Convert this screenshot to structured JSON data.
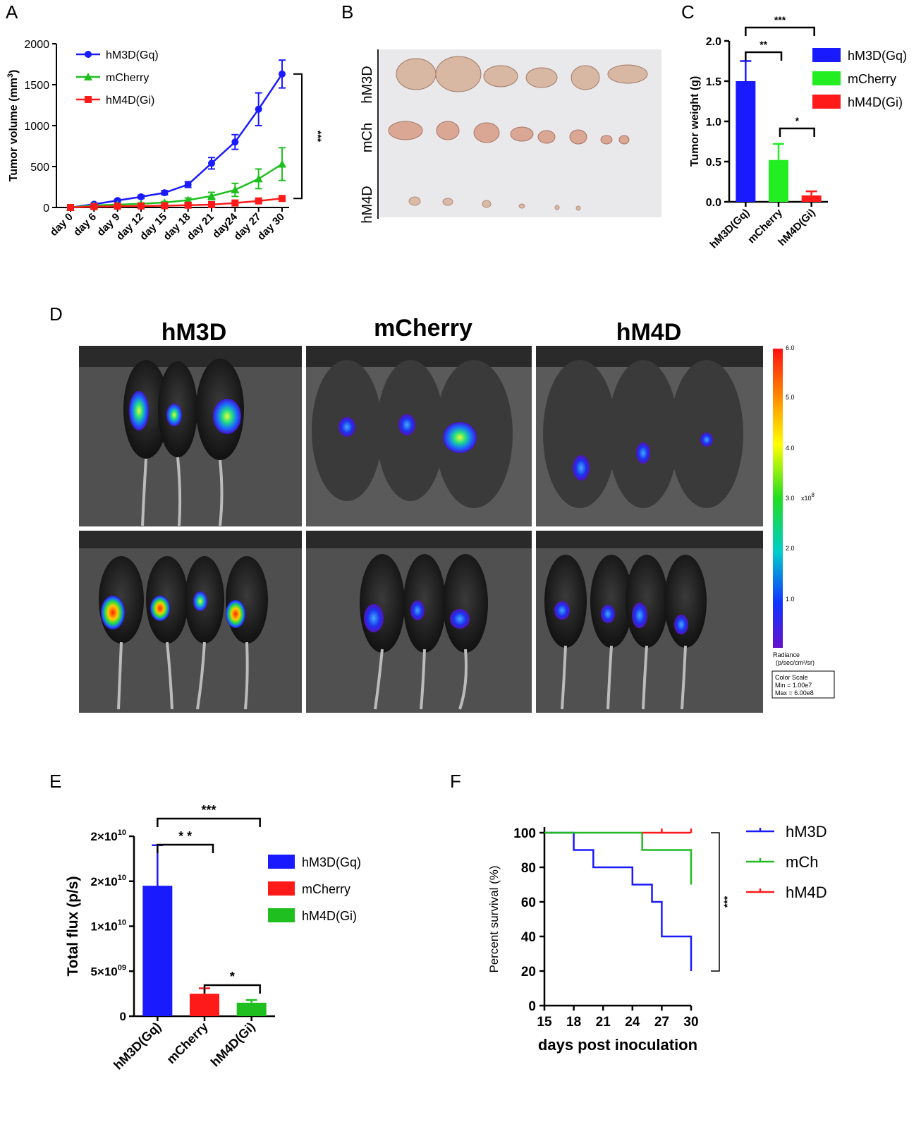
{
  "panels": {
    "a": "A",
    "b": "B",
    "c": "C",
    "d": "D",
    "e": "E",
    "f": "F"
  },
  "chart_data": [
    {
      "id": "A",
      "type": "line",
      "ylabel": "Tumor volume (mm",
      "ylabel_sup": "3",
      "ylabel_close": ")",
      "categories": [
        "day 0",
        "day 6",
        "day 9",
        "day 12",
        "day 15",
        "day 18",
        "day 21",
        "day24",
        "day 27",
        "day 30"
      ],
      "ylim": [
        0,
        2000
      ],
      "yticks": [
        "0",
        "500",
        "1000",
        "1500",
        "2000"
      ],
      "series": [
        {
          "name": "hM3D(Gq)",
          "color": "#1a1aff",
          "marker": "circle",
          "values": [
            0,
            40,
            85,
            130,
            180,
            280,
            540,
            800,
            1200,
            1630
          ],
          "errors": [
            0,
            10,
            15,
            20,
            25,
            35,
            70,
            90,
            200,
            170
          ]
        },
        {
          "name": "mCherry",
          "color": "#1fbf1f",
          "marker": "triangle",
          "values": [
            0,
            25,
            35,
            45,
            60,
            90,
            140,
            215,
            350,
            530
          ],
          "errors": [
            0,
            5,
            8,
            10,
            12,
            25,
            45,
            80,
            120,
            200
          ]
        },
        {
          "name": "hM4D(Gi)",
          "color": "#ff1a1a",
          "marker": "square",
          "values": [
            0,
            10,
            15,
            18,
            22,
            28,
            35,
            55,
            80,
            110
          ],
          "errors": [
            0,
            3,
            4,
            5,
            5,
            6,
            8,
            10,
            15,
            25
          ]
        }
      ],
      "significance": "***"
    },
    {
      "id": "C",
      "type": "bar",
      "ylabel": "Tumor weight (g)",
      "categories": [
        "hM3D(Gq)",
        "mCherry",
        "hM4D(Gi)"
      ],
      "values": [
        1.5,
        0.52,
        0.08
      ],
      "errors": [
        0.25,
        0.2,
        0.05
      ],
      "colors": [
        "#1a1aff",
        "#22ee22",
        "#ff1a1a"
      ],
      "ylim": [
        0,
        2.0
      ],
      "yticks": [
        "0.0",
        "0.5",
        "1.0",
        "1.5",
        "2.0"
      ],
      "legend": [
        "hM3D(Gq)",
        "mCherry",
        "hM4D(Gi)"
      ],
      "significance": [
        "***",
        "**",
        "*"
      ]
    },
    {
      "id": "E",
      "type": "bar",
      "ylabel": "Total flux (p/s)",
      "categories": [
        "hM3D(Gq)",
        "mCherry",
        "hM4D(Gi)"
      ],
      "values": [
        14500000000.0,
        2500000000.0,
        1500000000.0
      ],
      "errors": [
        4500000000.0,
        600000000.0,
        300000000.0
      ],
      "colors": [
        "#1a1aff",
        "#ff1a1a",
        "#1fbf1f"
      ],
      "ylim": [
        0,
        20000000000.0
      ],
      "ytick_values": [
        0,
        5000000000.0,
        10000000000.0,
        15000000000.0,
        20000000000.0
      ],
      "yticks": [
        {
          "base": "0",
          "exp": ""
        },
        {
          "base": "5×10",
          "exp": "09"
        },
        {
          "base": "1×10",
          "exp": "10"
        },
        {
          "base": "2×10",
          "exp": "10"
        },
        {
          "base": "2×10",
          "exp": "10"
        }
      ],
      "legend": [
        "hM3D(Gq)",
        "mCherry",
        "hM4D(Gi)"
      ],
      "significance": [
        "***",
        "* *",
        "*"
      ]
    },
    {
      "id": "F",
      "type": "line",
      "subtype": "survival",
      "ylabel": "Percent survival (%)",
      "xlabel": "days post inoculation",
      "xlim": [
        15,
        30
      ],
      "xticks": [
        "15",
        "18",
        "21",
        "24",
        "27",
        "30"
      ],
      "ylim": [
        0,
        100
      ],
      "yticks": [
        "0",
        "20",
        "40",
        "60",
        "80",
        "100"
      ],
      "series": [
        {
          "name": "hM3D",
          "color": "#1a1aff",
          "steps": [
            [
              15,
              100
            ],
            [
              18,
              100
            ],
            [
              18,
              90
            ],
            [
              20,
              90
            ],
            [
              20,
              80
            ],
            [
              24,
              80
            ],
            [
              24,
              70
            ],
            [
              26,
              70
            ],
            [
              26,
              60
            ],
            [
              27,
              60
            ],
            [
              27,
              40
            ],
            [
              30,
              40
            ],
            [
              30,
              20
            ]
          ]
        },
        {
          "name": "mCh",
          "color": "#22bb22",
          "steps": [
            [
              15,
              100
            ],
            [
              25,
              100
            ],
            [
              25,
              90
            ],
            [
              30,
              90
            ],
            [
              30,
              70
            ]
          ]
        },
        {
          "name": "hM4D",
          "color": "#ff1a1a",
          "steps": [
            [
              25,
              100
            ],
            [
              30,
              100
            ]
          ]
        }
      ],
      "significance": "***"
    }
  ],
  "panel_b": {
    "row_labels": [
      "hM3D",
      "mCh",
      "hM4D"
    ]
  },
  "panel_d": {
    "column_titles": [
      "hM3D",
      "mCherry",
      "hM4D"
    ],
    "scale_ticks": [
      "6.0",
      "5.0",
      "4.0",
      "3.0",
      "2.0",
      "1.0"
    ],
    "scale_multiplier": "x10",
    "scale_multiplier_exp": "8",
    "radiance_label": "Radiance",
    "radiance_units": "(p/sec/cm²/sr)",
    "color_scale_title": "Color Scale",
    "color_scale_min": "Min = 1.00e7",
    "color_scale_max": "Max = 6.00e8"
  }
}
